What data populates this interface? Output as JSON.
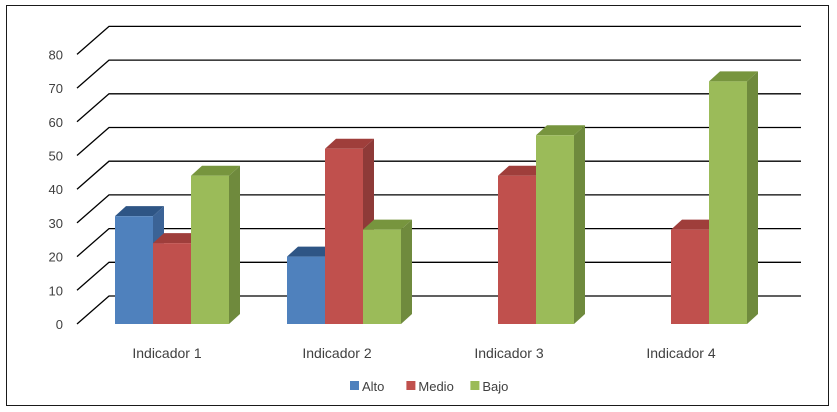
{
  "chart_data": {
    "type": "bar",
    "style": "3d-clustered-column",
    "title": "",
    "xlabel": "",
    "ylabel": "",
    "ylim": [
      0,
      80
    ],
    "yticks": [
      0,
      10,
      20,
      30,
      40,
      50,
      60,
      70,
      80
    ],
    "categories": [
      "Indicador 1",
      "Indicador 2",
      "Indicador 3",
      "Indicador 4"
    ],
    "series": [
      {
        "name": "Alto",
        "values": [
          32,
          20,
          0,
          0
        ],
        "color": "#4f81bd",
        "side": "#3b6396",
        "top": "#2e5585"
      },
      {
        "name": "Medio",
        "values": [
          24,
          52,
          44,
          28
        ],
        "color": "#c0504d",
        "side": "#8e3a38",
        "top": "#9f3e3b"
      },
      {
        "name": "Bajo",
        "values": [
          44,
          28,
          56,
          72
        ],
        "color": "#9bbb59",
        "side": "#6f8a3d",
        "top": "#77953e"
      }
    ],
    "grid": true,
    "legend": "bottom"
  }
}
